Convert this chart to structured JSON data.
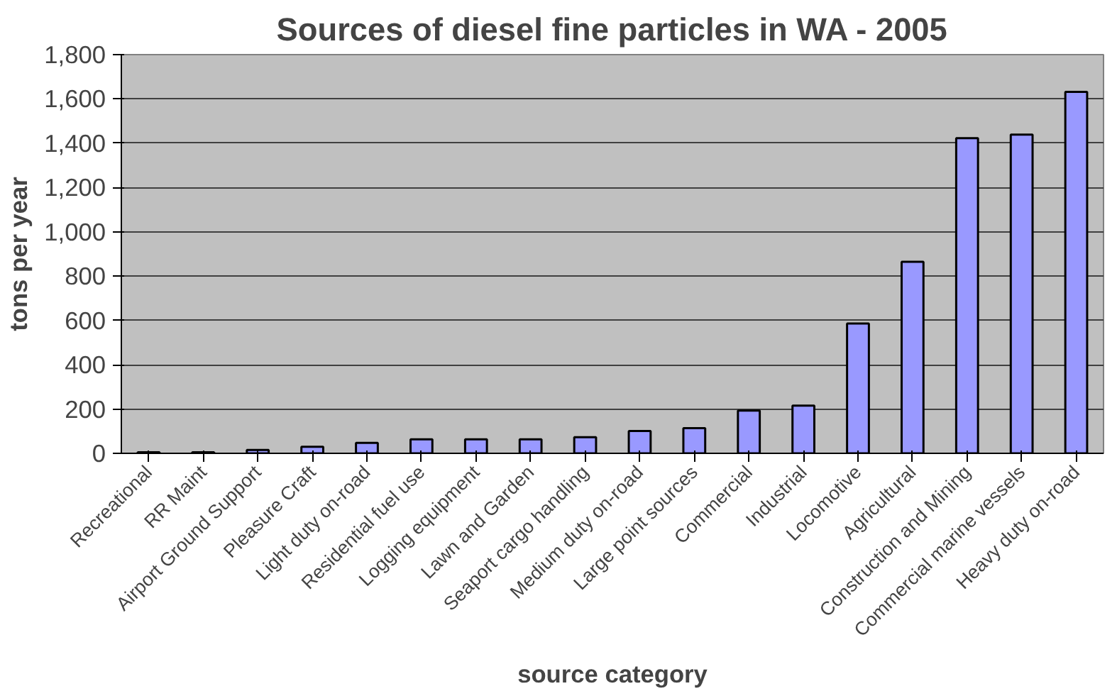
{
  "chart_data": {
    "type": "bar",
    "title": "Sources of diesel fine particles in WA - 2005",
    "xlabel": "source category",
    "ylabel": "tons per year",
    "categories": [
      "Recreational",
      "RR Maint",
      "Airport Ground Support",
      "Pleasure Craft",
      "Light duty on-road",
      "Residential fuel use",
      "Logging equipment",
      "Lawn and Garden",
      "Seaport cargo handling",
      "Medium duty on-road",
      "Large point sources",
      "Commercial",
      "Industrial",
      "Locomotive",
      "Agricultural",
      "Construction and Mining",
      "Commercial marine vessels",
      "Heavy duty on-road"
    ],
    "values": [
      5,
      5,
      15,
      30,
      47,
      63,
      63,
      63,
      73,
      101,
      114,
      193,
      215,
      586,
      865,
      1423,
      1439,
      1632
    ],
    "color": "#9999ff",
    "ylim": [
      0,
      1800
    ],
    "yticks": [
      {
        "value": 0,
        "label": "0"
      },
      {
        "value": 200,
        "label": "200"
      },
      {
        "value": 400,
        "label": "400"
      },
      {
        "value": 600,
        "label": "600"
      },
      {
        "value": 800,
        "label": "800"
      },
      {
        "value": 1000,
        "label": "1,000"
      },
      {
        "value": 1200,
        "label": "1,200"
      },
      {
        "value": 1400,
        "label": "1,400"
      },
      {
        "value": 1600,
        "label": "1,600"
      },
      {
        "value": 1800,
        "label": "1,800"
      }
    ],
    "grid": "y"
  }
}
